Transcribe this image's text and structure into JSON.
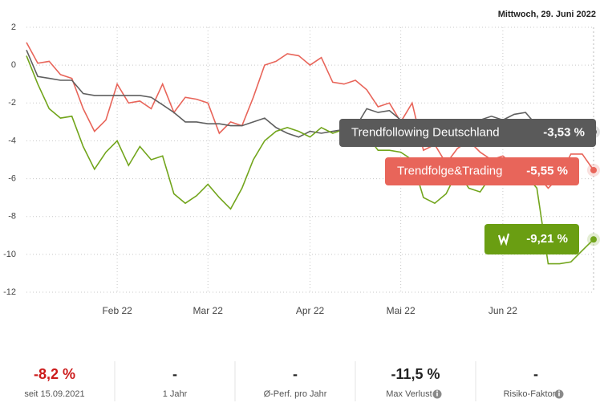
{
  "header": {
    "date": "Mittwoch, 29. Juni 2022"
  },
  "chart_data": {
    "type": "line",
    "categories": [
      null,
      null,
      null,
      null,
      null,
      null,
      null,
      null,
      "Feb 22",
      null,
      null,
      null,
      null,
      null,
      null,
      null,
      "Mar 22",
      null,
      null,
      null,
      null,
      null,
      null,
      null,
      null,
      "Apr 22",
      null,
      null,
      null,
      null,
      null,
      null,
      null,
      "Mai 22",
      null,
      null,
      null,
      null,
      null,
      null,
      null,
      null,
      "Jun 22",
      null,
      null,
      null,
      null,
      null,
      null,
      null,
      null
    ],
    "ylim": [
      -12,
      2
    ],
    "yticks": [
      2,
      0,
      -2,
      -4,
      -6,
      -8,
      -10,
      -12
    ],
    "grid": true,
    "series": [
      {
        "name": "Trendfolge&Trading",
        "color": "#e8655a",
        "values": [
          1.2,
          0.1,
          0.2,
          -0.5,
          -0.7,
          -2.3,
          -3.5,
          -2.9,
          -1.0,
          -2.0,
          -1.9,
          -2.3,
          -1.0,
          -2.5,
          -1.7,
          -1.8,
          -2.0,
          -3.6,
          -3.0,
          -3.2,
          -1.7,
          0.0,
          0.2,
          0.6,
          0.5,
          0.0,
          0.4,
          -0.9,
          -1.0,
          -0.8,
          -1.3,
          -2.2,
          -2.0,
          -3.0,
          -2.0,
          -4.5,
          -4.2,
          -5.2,
          -4.4,
          -4.0,
          -4.6,
          -5.0,
          -4.8,
          -5.3,
          -5.6,
          -5.8,
          -6.5,
          -5.9,
          -4.7,
          -4.7,
          -5.55
        ],
        "value_labels": [
          null,
          null,
          null,
          null,
          null,
          null,
          null,
          null,
          null,
          null,
          null,
          null,
          null,
          null,
          null,
          null,
          null,
          null,
          null,
          null,
          null,
          null,
          null,
          null,
          null,
          null,
          null,
          null,
          null,
          null,
          null,
          null,
          null,
          null,
          null,
          null,
          null,
          null,
          null,
          null,
          null,
          null,
          null,
          null,
          null,
          null,
          null,
          null,
          null,
          null,
          "-5,55 %"
        ]
      },
      {
        "name": "Trendfollowing Deutschland",
        "color": "#5f5f5f",
        "values": [
          0.8,
          -0.6,
          -0.7,
          -0.8,
          -0.8,
          -1.5,
          -1.6,
          -1.6,
          -1.6,
          -1.6,
          -1.6,
          -1.7,
          -2.1,
          -2.5,
          -3.0,
          -3.0,
          -3.1,
          -3.1,
          -3.2,
          -3.2,
          -3.0,
          -2.8,
          -3.3,
          -3.6,
          -3.8,
          -3.5,
          -3.6,
          -3.5,
          -3.4,
          -3.3,
          -2.3,
          -2.5,
          -2.4,
          -2.9,
          -3.2,
          -3.4,
          -3.3,
          -3.0,
          -2.9,
          -3.2,
          -2.9,
          -2.7,
          -2.9,
          -2.6,
          -2.5,
          -3.2,
          -3.5,
          -3.5,
          -3.5,
          -3.5,
          -3.53
        ],
        "value_labels": [
          null,
          null,
          null,
          null,
          null,
          null,
          null,
          null,
          null,
          null,
          null,
          null,
          null,
          null,
          null,
          null,
          null,
          null,
          null,
          null,
          null,
          null,
          null,
          null,
          null,
          null,
          null,
          null,
          null,
          null,
          null,
          null,
          null,
          null,
          null,
          null,
          null,
          null,
          null,
          null,
          null,
          null,
          null,
          null,
          null,
          null,
          null,
          null,
          null,
          null,
          "-3,53 %"
        ]
      },
      {
        "color": "#72a51c",
        "values": [
          0.5,
          -1.0,
          -2.3,
          -2.8,
          -2.7,
          -4.3,
          -5.5,
          -4.6,
          -4.0,
          -5.3,
          -4.3,
          -5.0,
          -4.8,
          -6.8,
          -7.3,
          -6.9,
          -6.3,
          -7.0,
          -7.6,
          -6.5,
          -5.0,
          -4.0,
          -3.5,
          -3.3,
          -3.5,
          -3.8,
          -3.3,
          -3.6,
          -3.4,
          -3.5,
          -3.7,
          -4.5,
          -4.5,
          -4.6,
          -5.0,
          -7.0,
          -7.3,
          -6.8,
          -5.6,
          -6.5,
          -6.7,
          -5.8,
          -5.6,
          -5.7,
          -5.8,
          -6.5,
          -10.5,
          -10.5,
          -10.4,
          -9.8,
          -9.21
        ],
        "value_labels": [
          null,
          null,
          null,
          null,
          null,
          null,
          null,
          null,
          null,
          null,
          null,
          null,
          null,
          null,
          null,
          null,
          null,
          null,
          null,
          null,
          null,
          null,
          null,
          null,
          null,
          null,
          null,
          null,
          null,
          null,
          null,
          null,
          null,
          null,
          null,
          null,
          null,
          null,
          null,
          null,
          null,
          null,
          null,
          null,
          null,
          null,
          null,
          null,
          null,
          null,
          "-9,21 %"
        ]
      }
    ]
  },
  "stats": [
    {
      "value": "-8,2 %",
      "label": "seit 15.09.2021"
    },
    {
      "value": "-",
      "label": "1 Jahr"
    },
    {
      "value": "-",
      "label": "Ø-Perf. pro Jahr"
    },
    {
      "value": "-11,5 %",
      "label": "Max Verlust"
    },
    {
      "value": "-",
      "label": "Risiko-Faktor"
    }
  ]
}
